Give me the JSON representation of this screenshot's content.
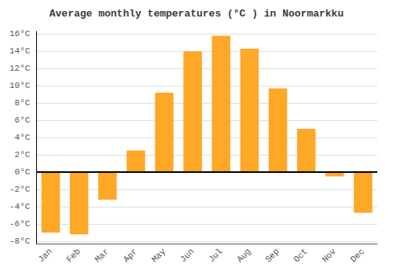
{
  "chart_data": {
    "type": "bar",
    "title": "Average monthly temperatures (°C ) in Noormarkku",
    "categories": [
      "Jan",
      "Feb",
      "Mar",
      "Apr",
      "May",
      "Jun",
      "Jul",
      "Aug",
      "Sep",
      "Oct",
      "Nov",
      "Dec"
    ],
    "values": [
      -7.0,
      -7.2,
      -3.2,
      2.5,
      9.2,
      14.0,
      15.8,
      14.3,
      9.7,
      5.0,
      -0.5,
      -4.7
    ],
    "color": "#FFA726",
    "ylim": [
      -8.3,
      16.3
    ],
    "yticks": [
      {
        "value": -8,
        "label": "-8°C"
      },
      {
        "value": -6,
        "label": "-6°C"
      },
      {
        "value": -4,
        "label": "-4°C"
      },
      {
        "value": -2,
        "label": "-2°C"
      },
      {
        "value": 0,
        "label": "0°C"
      },
      {
        "value": 2,
        "label": "2°C"
      },
      {
        "value": 4,
        "label": "4°C"
      },
      {
        "value": 6,
        "label": "6°C"
      },
      {
        "value": 8,
        "label": "8°C"
      },
      {
        "value": 10,
        "label": "10°C"
      },
      {
        "value": 12,
        "label": "12°C"
      },
      {
        "value": 14,
        "label": "14°C"
      },
      {
        "value": 16,
        "label": "16°C"
      }
    ],
    "grid": true
  }
}
